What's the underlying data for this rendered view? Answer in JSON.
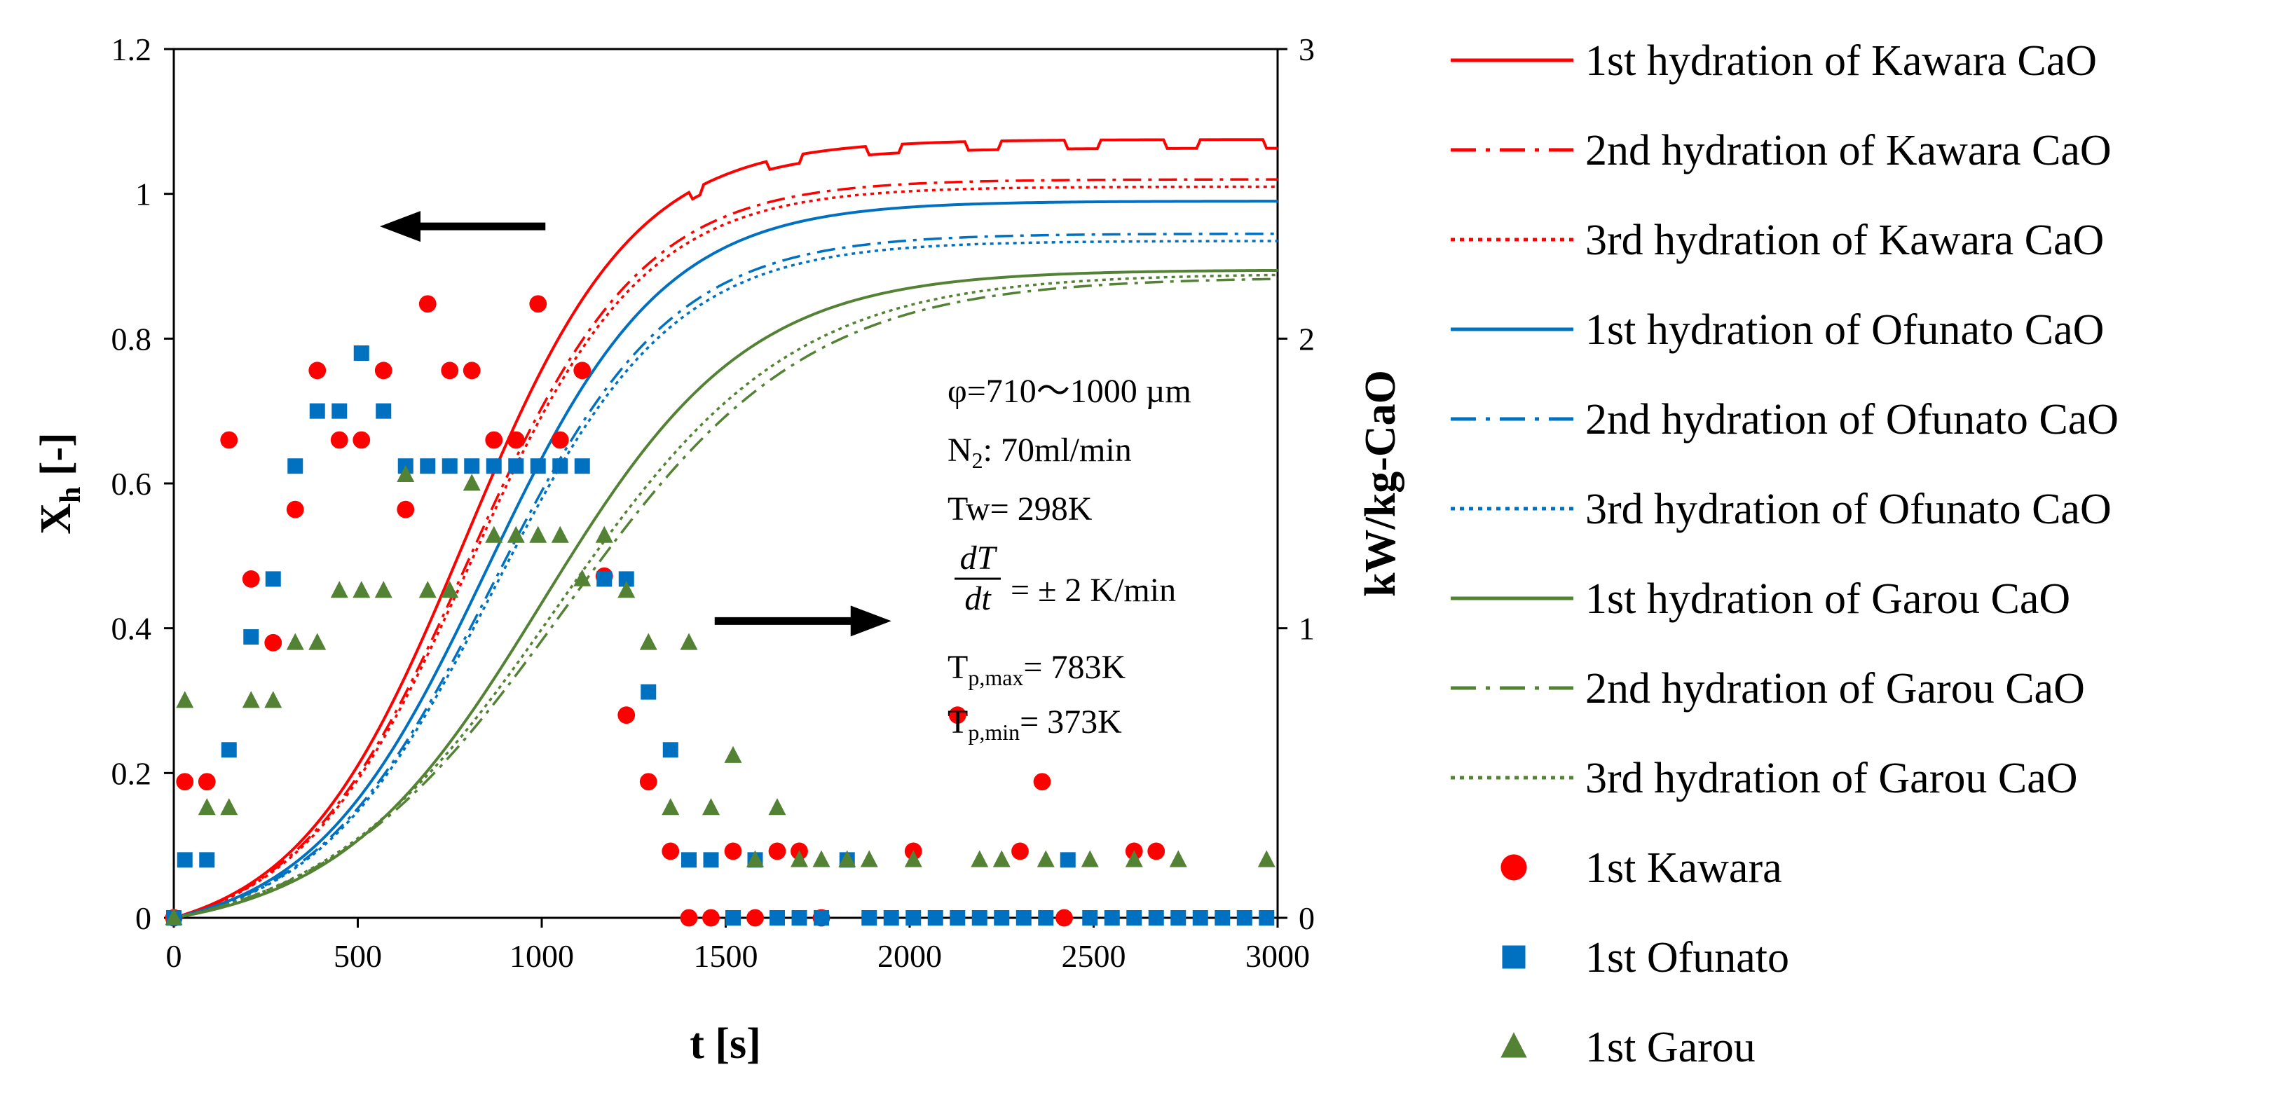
{
  "chart_data": {
    "type": "line",
    "title": "",
    "xlabel": "t [s]",
    "ylabel_left": "X",
    "ylabel_left_sub": "h",
    "ylabel_left_suffix": " [-]",
    "ylabel_right": "kW/kg-CaO",
    "xlim": [
      0,
      3000
    ],
    "ylim_left": [
      0,
      1.2
    ],
    "ylim_right": [
      0,
      3
    ],
    "x_ticks": [
      "0",
      "500",
      "1000",
      "1500",
      "2000",
      "2500",
      "3000"
    ],
    "y_left_ticks": [
      "0",
      "0.2",
      "0.4",
      "0.6",
      "0.8",
      "1",
      "1.2"
    ],
    "y_right_ticks": [
      "0",
      "1",
      "2",
      "3"
    ],
    "grid": false,
    "legend_position": "right",
    "colors": {
      "kawara": "#ff0000",
      "ofunato": "#0070c0",
      "garou": "#548235"
    },
    "annotations": {
      "line1": "φ=710〜1000 µm",
      "line2_main": "N",
      "line2_sub": "2",
      "line2_rest": ": 70ml/min",
      "line3": "Tw= 298K",
      "frac_num": "dT",
      "frac_den": "dt",
      "line4_rest": "= ± 2 K/min",
      "line5_main": "T",
      "line5_sub": "p,max",
      "line5_rest": "= 783K",
      "line6_main": "T",
      "line6_sub": "p,min",
      "line6_rest": "= 373K"
    },
    "arrows": [
      {
        "points_to": "left-axis",
        "from": [
          1010,
          0.955
        ],
        "to": [
          560,
          0.955
        ]
      },
      {
        "points_to": "right-axis",
        "from": [
          1470,
          0.41
        ],
        "to": [
          1950,
          0.41
        ]
      }
    ],
    "series": [
      {
        "name": "1st hydration of Kawara CaO",
        "axis": "left",
        "color": "#ff0000",
        "dash": "solid",
        "tau": 230,
        "x50": 790,
        "xmax": 1.075
      },
      {
        "name": "2nd hydration of Kawara CaO",
        "axis": "left",
        "color": "#ff0000",
        "dash": "dashdot",
        "tau": 235,
        "x50": 800,
        "xmax": 1.02
      },
      {
        "name": "3rd hydration of Kawara CaO",
        "axis": "left",
        "color": "#ff0000",
        "dash": "dot",
        "tau": 235,
        "x50": 805,
        "xmax": 1.01
      },
      {
        "name": "1st hydration of Ofunato CaO",
        "axis": "left",
        "color": "#0070c0",
        "dash": "solid",
        "tau": 240,
        "x50": 850,
        "xmax": 0.99
      },
      {
        "name": "2nd hydration of Ofunato CaO",
        "axis": "left",
        "color": "#0070c0",
        "dash": "dashdot",
        "tau": 245,
        "x50": 865,
        "xmax": 0.945
      },
      {
        "name": "3rd hydration of Ofunato CaO",
        "axis": "left",
        "color": "#0070c0",
        "dash": "dot",
        "tau": 245,
        "x50": 870,
        "xmax": 0.935
      },
      {
        "name": "1st hydration of Garou CaO",
        "axis": "left",
        "color": "#548235",
        "dash": "solid",
        "tau": 280,
        "x50": 1000,
        "xmax": 0.895
      },
      {
        "name": "2nd hydration of Garou CaO",
        "axis": "left",
        "color": "#548235",
        "dash": "dashdot",
        "tau": 330,
        "x50": 1060,
        "xmax": 0.885
      },
      {
        "name": "3rd hydration of Garou CaO",
        "axis": "left",
        "color": "#548235",
        "dash": "dot",
        "tau": 320,
        "x50": 1040,
        "xmax": 0.89
      }
    ],
    "scatter": [
      {
        "name": "1st Kawara",
        "axis": "right",
        "marker": "circle",
        "color": "#ff0000",
        "points": [
          [
            0,
            0
          ],
          [
            30,
            0.47
          ],
          [
            90,
            0.47
          ],
          [
            150,
            1.65
          ],
          [
            210,
            1.17
          ],
          [
            270,
            0.95
          ],
          [
            330,
            1.41
          ],
          [
            390,
            1.89
          ],
          [
            450,
            1.65
          ],
          [
            510,
            1.65
          ],
          [
            570,
            1.89
          ],
          [
            630,
            1.41
          ],
          [
            690,
            2.12
          ],
          [
            750,
            1.89
          ],
          [
            810,
            1.89
          ],
          [
            870,
            1.65
          ],
          [
            930,
            1.65
          ],
          [
            990,
            2.12
          ],
          [
            1050,
            1.65
          ],
          [
            1110,
            1.89
          ],
          [
            1170,
            1.18
          ],
          [
            1230,
            0.7
          ],
          [
            1290,
            0.47
          ],
          [
            1350,
            0.23
          ],
          [
            1400,
            0
          ],
          [
            1460,
            0
          ],
          [
            1520,
            0.23
          ],
          [
            1580,
            0
          ],
          [
            1640,
            0.23
          ],
          [
            1700,
            0.23
          ],
          [
            1760,
            0
          ],
          [
            2010,
            0.23
          ],
          [
            2130,
            0.7
          ],
          [
            2300,
            0.23
          ],
          [
            2360,
            0.47
          ],
          [
            2420,
            0
          ],
          [
            2610,
            0.23
          ],
          [
            2670,
            0.23
          ]
        ]
      },
      {
        "name": "1st Ofunato",
        "axis": "right",
        "marker": "square",
        "color": "#0070c0",
        "points": [
          [
            0,
            0
          ],
          [
            30,
            0.2
          ],
          [
            90,
            0.2
          ],
          [
            150,
            0.58
          ],
          [
            210,
            0.97
          ],
          [
            270,
            1.17
          ],
          [
            330,
            1.56
          ],
          [
            390,
            1.75
          ],
          [
            450,
            1.75
          ],
          [
            510,
            1.95
          ],
          [
            570,
            1.75
          ],
          [
            630,
            1.56
          ],
          [
            690,
            1.56
          ],
          [
            750,
            1.56
          ],
          [
            810,
            1.56
          ],
          [
            870,
            1.56
          ],
          [
            930,
            1.56
          ],
          [
            990,
            1.56
          ],
          [
            1050,
            1.56
          ],
          [
            1110,
            1.56
          ],
          [
            1170,
            1.17
          ],
          [
            1230,
            1.17
          ],
          [
            1290,
            0.78
          ],
          [
            1350,
            0.58
          ],
          [
            1400,
            0.2
          ],
          [
            1460,
            0.2
          ],
          [
            1520,
            0
          ],
          [
            1580,
            0.2
          ],
          [
            1640,
            0
          ],
          [
            1700,
            0
          ],
          [
            1760,
            0
          ],
          [
            1830,
            0.2
          ],
          [
            1890,
            0
          ],
          [
            1950,
            0
          ],
          [
            2010,
            0
          ],
          [
            2070,
            0
          ],
          [
            2130,
            0
          ],
          [
            2190,
            0
          ],
          [
            2250,
            0
          ],
          [
            2310,
            0
          ],
          [
            2370,
            0
          ],
          [
            2430,
            0.2
          ],
          [
            2490,
            0
          ],
          [
            2550,
            0
          ],
          [
            2610,
            0
          ],
          [
            2670,
            0
          ],
          [
            2730,
            0
          ],
          [
            2790,
            0
          ],
          [
            2850,
            0
          ],
          [
            2910,
            0
          ],
          [
            2970,
            0
          ]
        ]
      },
      {
        "name": "1st Garou",
        "axis": "right",
        "marker": "triangle",
        "color": "#548235",
        "points": [
          [
            0,
            0
          ],
          [
            30,
            0.75
          ],
          [
            90,
            0.38
          ],
          [
            150,
            0.38
          ],
          [
            210,
            0.75
          ],
          [
            270,
            0.75
          ],
          [
            330,
            0.95
          ],
          [
            390,
            0.95
          ],
          [
            450,
            1.13
          ],
          [
            510,
            1.13
          ],
          [
            570,
            1.13
          ],
          [
            630,
            1.53
          ],
          [
            690,
            1.13
          ],
          [
            750,
            1.13
          ],
          [
            810,
            1.5
          ],
          [
            870,
            1.32
          ],
          [
            930,
            1.32
          ],
          [
            990,
            1.32
          ],
          [
            1050,
            1.32
          ],
          [
            1110,
            1.17
          ],
          [
            1170,
            1.32
          ],
          [
            1230,
            1.13
          ],
          [
            1290,
            0.95
          ],
          [
            1350,
            0.38
          ],
          [
            1400,
            0.95
          ],
          [
            1460,
            0.38
          ],
          [
            1520,
            0.56
          ],
          [
            1580,
            0.2
          ],
          [
            1640,
            0.38
          ],
          [
            1700,
            0.2
          ],
          [
            1760,
            0.2
          ],
          [
            1830,
            0.2
          ],
          [
            1890,
            0.2
          ],
          [
            2010,
            0.2
          ],
          [
            2190,
            0.2
          ],
          [
            2250,
            0.2
          ],
          [
            2370,
            0.2
          ],
          [
            2490,
            0.2
          ],
          [
            2610,
            0.2
          ],
          [
            2730,
            0.2
          ],
          [
            2970,
            0.2
          ]
        ]
      }
    ]
  }
}
